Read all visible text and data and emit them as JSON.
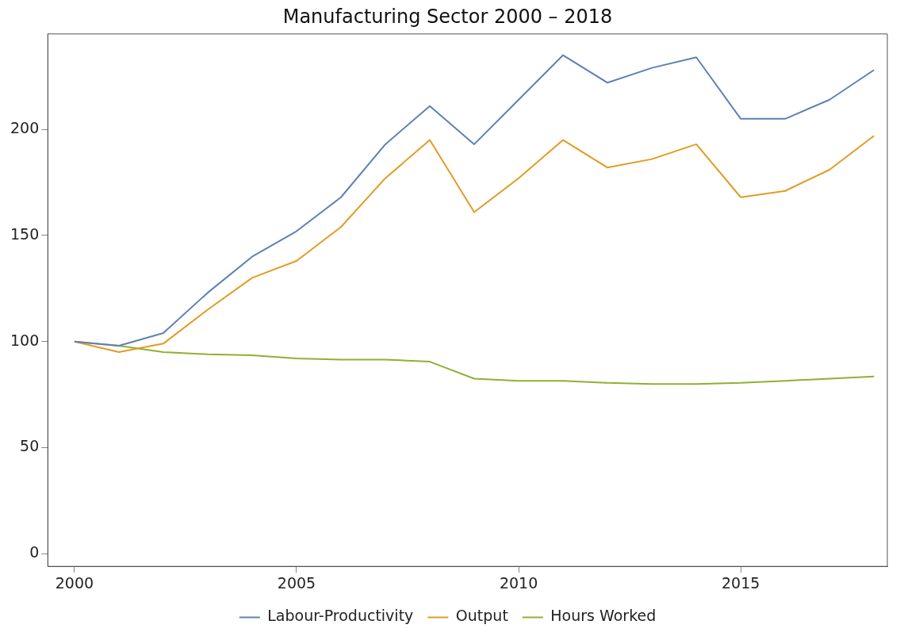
{
  "chart_data": {
    "type": "line",
    "title": "Manufacturing Sector 2000 – 2018",
    "x": [
      2000,
      2001,
      2002,
      2003,
      2004,
      2005,
      2006,
      2007,
      2008,
      2009,
      2010,
      2011,
      2012,
      2013,
      2014,
      2015,
      2016,
      2017,
      2018
    ],
    "series": [
      {
        "name": "Labour-Productivity",
        "color": "#5e81b5",
        "values": [
          100,
          98,
          104,
          123,
          140,
          152,
          168,
          193,
          211,
          193,
          214,
          235,
          222,
          229,
          234,
          205,
          205,
          214,
          228
        ]
      },
      {
        "name": "Output",
        "color": "#e19c24",
        "values": [
          100,
          95,
          99,
          115,
          130,
          138,
          154,
          177,
          195,
          161,
          177,
          195,
          182,
          186,
          193,
          168,
          171,
          181,
          197
        ]
      },
      {
        "name": "Hours Worked",
        "color": "#8fb032",
        "values": [
          100,
          98,
          95,
          94,
          93.5,
          92,
          91.5,
          91.5,
          90.5,
          82.5,
          81.5,
          81.5,
          80.5,
          80,
          80,
          80.5,
          81.5,
          82.5,
          83.5
        ]
      }
    ],
    "xlim": [
      1999.4,
      2018.3
    ],
    "xticks": [
      2000,
      2005,
      2010,
      2015
    ],
    "ylim": [
      -6,
      245
    ],
    "yticks": [
      0,
      50,
      100,
      150,
      200
    ],
    "grid": false,
    "legend": "bottom",
    "marker": "none",
    "line_style": "solid"
  }
}
